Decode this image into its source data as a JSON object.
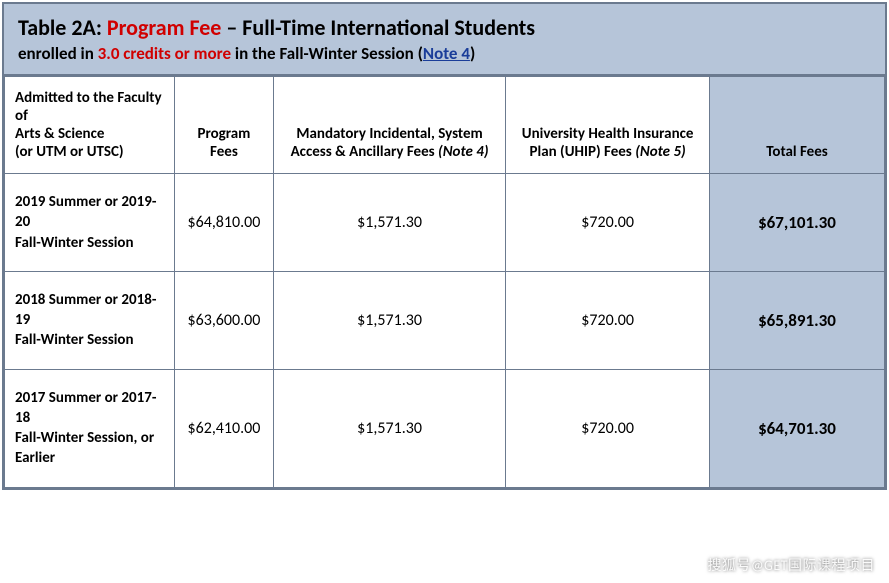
{
  "header": {
    "t1_pre": "Table 2A:  ",
    "t1_red": "Program Fee",
    "t1_post": " – Full-Time International Students",
    "t2_pre": "enrolled in ",
    "t2_red": "3.0 credits or more",
    "t2_mid": " in the Fall-Winter Session (",
    "t2_link": "Note 4",
    "t2_end": ")"
  },
  "columns": {
    "c1": "Admitted to the Faculty of\nArts & Science\n(or UTM or UTSC)",
    "c2": "Program Fees",
    "c3_l1": "Mandatory Incidental, System Access & Ancillary Fees ",
    "c3_note": "(Note 4)",
    "c4_l1": "University Health Insurance Plan (UHIP) Fees ",
    "c4_note": "(Note 5)",
    "c5": "Total Fees"
  },
  "rows": [
    {
      "admit": "2019 Summer or 2019-20\nFall-Winter Session",
      "program": "$64,810.00",
      "incidental": "$1,571.30",
      "uhip": "$720.00",
      "total": "$67,101.30"
    },
    {
      "admit": "2018 Summer or 2018-19\nFall-Winter Session",
      "program": "$63,600.00",
      "incidental": "$1,571.30",
      "uhip": "$720.00",
      "total": "$65,891.30"
    },
    {
      "admit": "2017 Summer or 2017-18\nFall-Winter Session, or Earlier",
      "program": "$62,410.00",
      "incidental": "$1,571.30",
      "uhip": "$720.00",
      "total": "$64,701.30"
    }
  ],
  "colors": {
    "header_bg": "#b6c5d9",
    "border": "#6b7a8f",
    "red": "#d00000",
    "link": "#1a3d99"
  },
  "watermark": "搜狐号@GET国际课程项目"
}
